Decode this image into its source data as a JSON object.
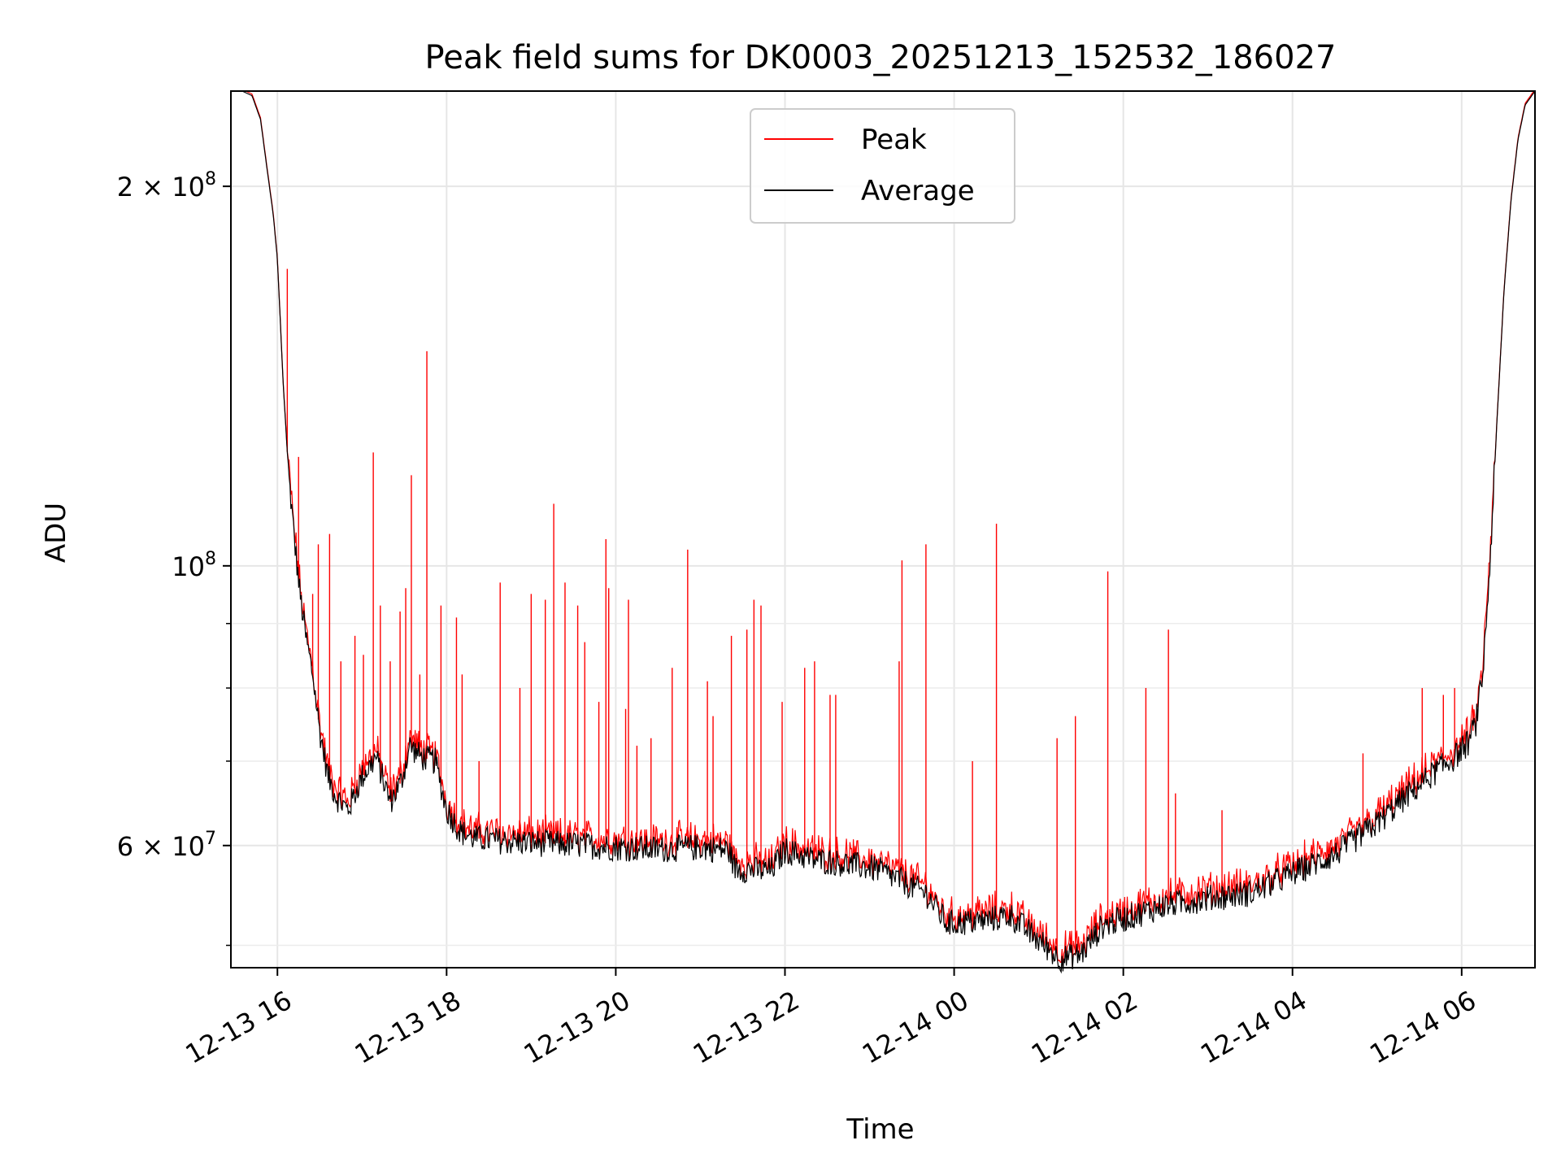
{
  "chart_data": {
    "type": "line",
    "title": "Peak field sums for DK0003_20251213_152532_186027",
    "xlabel": "Time",
    "ylabel": "ADU",
    "x_scale": "time",
    "y_scale": "log",
    "xlim": [
      "2025-12-13 15:27",
      "2025-12-14 06:52"
    ],
    "ylim": [
      48000000,
      238000000
    ],
    "grid": true,
    "legend_position": "top-center",
    "x_ticks": [
      {
        "value": "2025-12-13 16:00",
        "label": "12-13 16"
      },
      {
        "value": "2025-12-13 18:00",
        "label": "12-13 18"
      },
      {
        "value": "2025-12-13 20:00",
        "label": "12-13 20"
      },
      {
        "value": "2025-12-13 22:00",
        "label": "12-13 22"
      },
      {
        "value": "2025-12-14 00:00",
        "label": "12-14 00"
      },
      {
        "value": "2025-12-14 02:00",
        "label": "12-14 02"
      },
      {
        "value": "2025-12-14 04:00",
        "label": "12-14 04"
      },
      {
        "value": "2025-12-14 06:00",
        "label": "12-14 06"
      }
    ],
    "y_major_ticks": [
      {
        "value": 60000000,
        "base": "6 × 10",
        "exp": "7"
      },
      {
        "value": 100000000,
        "base": "10",
        "exp": "8"
      },
      {
        "value": 200000000,
        "base": "2 × 10",
        "exp": "8"
      }
    ],
    "y_minor_ticks": [
      50000000,
      70000000,
      80000000,
      90000000
    ],
    "series": [
      {
        "name": "Peak",
        "color": "#ff0000",
        "baseline_from": "Average",
        "spikes": [
          [
            "2025-12-13 16:07",
            172000000
          ],
          [
            "2025-12-13 16:15",
            122000000
          ],
          [
            "2025-12-13 16:25",
            95000000
          ],
          [
            "2025-12-13 16:29",
            104000000
          ],
          [
            "2025-12-13 16:37",
            106000000
          ],
          [
            "2025-12-13 16:45",
            84000000
          ],
          [
            "2025-12-13 16:55",
            88000000
          ],
          [
            "2025-12-13 17:01",
            85000000
          ],
          [
            "2025-12-13 17:08",
            123000000
          ],
          [
            "2025-12-13 17:13",
            93000000
          ],
          [
            "2025-12-13 17:20",
            84000000
          ],
          [
            "2025-12-13 17:27",
            92000000
          ],
          [
            "2025-12-13 17:31",
            96000000
          ],
          [
            "2025-12-13 17:35",
            118000000
          ],
          [
            "2025-12-13 17:41",
            82000000
          ],
          [
            "2025-12-13 17:46",
            148000000
          ],
          [
            "2025-12-13 17:56",
            93000000
          ],
          [
            "2025-12-13 18:07",
            91000000
          ],
          [
            "2025-12-13 18:11",
            82000000
          ],
          [
            "2025-12-13 18:23",
            70000000
          ],
          [
            "2025-12-13 18:38",
            97000000
          ],
          [
            "2025-12-13 18:52",
            80000000
          ],
          [
            "2025-12-13 19:00",
            95000000
          ],
          [
            "2025-12-13 19:10",
            94000000
          ],
          [
            "2025-12-13 19:16",
            112000000
          ],
          [
            "2025-12-13 19:24",
            97000000
          ],
          [
            "2025-12-13 19:33",
            93000000
          ],
          [
            "2025-12-13 19:38",
            87000000
          ],
          [
            "2025-12-13 19:48",
            78000000
          ],
          [
            "2025-12-13 19:53",
            105000000
          ],
          [
            "2025-12-13 19:55",
            96000000
          ],
          [
            "2025-12-13 20:07",
            77000000
          ],
          [
            "2025-12-13 20:09",
            94000000
          ],
          [
            "2025-12-13 20:15",
            72000000
          ],
          [
            "2025-12-13 20:25",
            73000000
          ],
          [
            "2025-12-13 20:40",
            83000000
          ],
          [
            "2025-12-13 20:51",
            103000000
          ],
          [
            "2025-12-13 21:05",
            81000000
          ],
          [
            "2025-12-13 21:09",
            76000000
          ],
          [
            "2025-12-13 21:22",
            88000000
          ],
          [
            "2025-12-13 21:33",
            89000000
          ],
          [
            "2025-12-13 21:38",
            94000000
          ],
          [
            "2025-12-13 21:43",
            93000000
          ],
          [
            "2025-12-13 21:58",
            78000000
          ],
          [
            "2025-12-13 22:14",
            83000000
          ],
          [
            "2025-12-13 22:21",
            84000000
          ],
          [
            "2025-12-13 22:32",
            79000000
          ],
          [
            "2025-12-13 22:36",
            79000000
          ],
          [
            "2025-12-13 23:21",
            84000000
          ],
          [
            "2025-12-13 23:23",
            101000000
          ],
          [
            "2025-12-13 23:40",
            104000000
          ],
          [
            "2025-12-14 00:13",
            70000000
          ],
          [
            "2025-12-14 00:30",
            108000000
          ],
          [
            "2025-12-14 01:13",
            73000000
          ],
          [
            "2025-12-14 01:26",
            76000000
          ],
          [
            "2025-12-14 01:49",
            99000000
          ],
          [
            "2025-12-14 02:16",
            80000000
          ],
          [
            "2025-12-14 02:32",
            89000000
          ],
          [
            "2025-12-14 02:37",
            66000000
          ],
          [
            "2025-12-14 03:10",
            64000000
          ],
          [
            "2025-12-14 04:50",
            71000000
          ],
          [
            "2025-12-14 05:32",
            80000000
          ],
          [
            "2025-12-14 05:47",
            79000000
          ],
          [
            "2025-12-14 05:55",
            80000000
          ],
          [
            "2025-12-14 06:08",
            77000000
          ]
        ]
      },
      {
        "name": "Average",
        "color": "#000000",
        "x": [
          "2025-12-13 15:27",
          "2025-12-13 15:35",
          "2025-12-13 15:42",
          "2025-12-13 15:48",
          "2025-12-13 15:53",
          "2025-12-13 15:57",
          "2025-12-13 16:00",
          "2025-12-13 16:04",
          "2025-12-13 16:08",
          "2025-12-13 16:12",
          "2025-12-13 16:16",
          "2025-12-13 16:20",
          "2025-12-13 16:25",
          "2025-12-13 16:30",
          "2025-12-13 16:36",
          "2025-12-13 16:42",
          "2025-12-13 16:50",
          "2025-12-13 17:00",
          "2025-12-13 17:10",
          "2025-12-13 17:20",
          "2025-12-13 17:28",
          "2025-12-13 17:34",
          "2025-12-13 17:42",
          "2025-12-13 17:52",
          "2025-12-13 18:00",
          "2025-12-13 18:10",
          "2025-12-13 18:20",
          "2025-12-13 18:40",
          "2025-12-13 19:00",
          "2025-12-13 19:30",
          "2025-12-13 20:00",
          "2025-12-13 20:30",
          "2025-12-13 21:00",
          "2025-12-13 21:20",
          "2025-12-13 21:25",
          "2025-12-13 21:50",
          "2025-12-13 22:00",
          "2025-12-13 22:20",
          "2025-12-13 22:45",
          "2025-12-13 23:05",
          "2025-12-13 23:40",
          "2025-12-13 23:55",
          "2025-12-14 00:20",
          "2025-12-14 00:40",
          "2025-12-14 00:55",
          "2025-12-14 01:15",
          "2025-12-14 01:30",
          "2025-12-14 01:45",
          "2025-12-14 02:00",
          "2025-12-14 02:30",
          "2025-12-14 03:00",
          "2025-12-14 03:30",
          "2025-12-14 04:00",
          "2025-12-14 04:30",
          "2025-12-14 05:00",
          "2025-12-14 05:20",
          "2025-12-14 05:40",
          "2025-12-14 05:55",
          "2025-12-14 06:05",
          "2025-12-14 06:10",
          "2025-12-14 06:15",
          "2025-12-14 06:20",
          "2025-12-14 06:25",
          "2025-12-14 06:30",
          "2025-12-14 06:35",
          "2025-12-14 06:40",
          "2025-12-14 06:45",
          "2025-12-14 06:52"
        ],
        "values": [
          238000000,
          238000000,
          236000000,
          226000000,
          205000000,
          190000000,
          175000000,
          140000000,
          118000000,
          105000000,
          95000000,
          88000000,
          82000000,
          74000000,
          68000000,
          65500000,
          64000000,
          68000000,
          70500000,
          65000000,
          67500000,
          72000000,
          70500000,
          70000000,
          64000000,
          61500000,
          60800000,
          60500000,
          60300000,
          60100000,
          59800000,
          59600000,
          59800000,
          59500000,
          57500000,
          57300000,
          59500000,
          58500000,
          58000000,
          57500000,
          55000000,
          52000000,
          52300000,
          52800000,
          51000000,
          48800000,
          49200000,
          51800000,
          52500000,
          53800000,
          54500000,
          55000000,
          57000000,
          59000000,
          62500000,
          65500000,
          68500000,
          70500000,
          72500000,
          75000000,
          82000000,
          100000000,
          130000000,
          165000000,
          195000000,
          218000000,
          232000000,
          238000000
        ]
      }
    ]
  }
}
